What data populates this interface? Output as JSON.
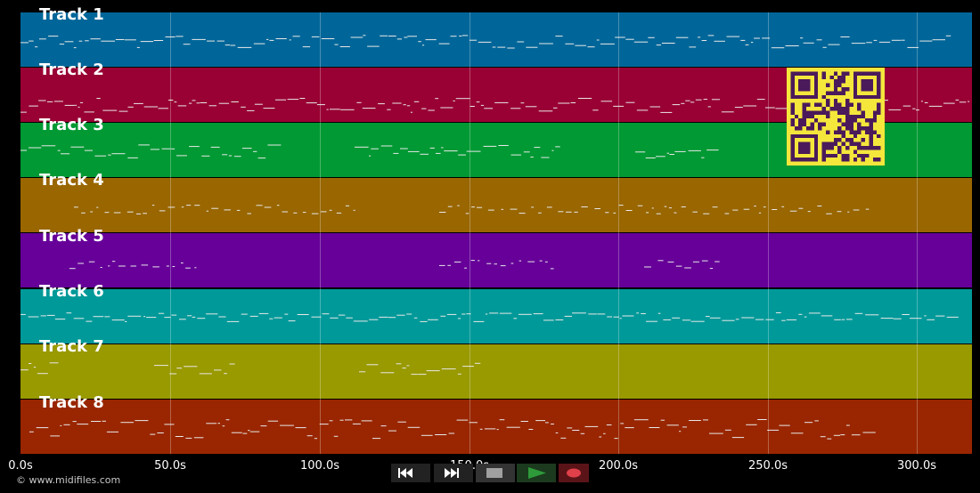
{
  "tracks": [
    {
      "name": "Track 1",
      "color": "#006699"
    },
    {
      "name": "Track 2",
      "color": "#990033"
    },
    {
      "name": "Track 3",
      "color": "#009933"
    },
    {
      "name": "Track 4",
      "color": "#996600"
    },
    {
      "name": "Track 5",
      "color": "#660099"
    },
    {
      "name": "Track 6",
      "color": "#009999"
    },
    {
      "name": "Track 7",
      "color": "#999900"
    },
    {
      "name": "Track 8",
      "color": "#992600"
    }
  ],
  "timeline": {
    "ticks": [
      "0.0s",
      "50.0s",
      "100.0s",
      "150.0s",
      "200.0s",
      "250.0s",
      "300.0s"
    ],
    "tick_values": [
      0,
      50,
      100,
      150,
      200,
      250,
      300
    ],
    "max_seconds": 318
  },
  "footer": {
    "copyright": "© www.midifiles.com"
  },
  "transport": {
    "rewind_icon": "rewind-icon",
    "fast_forward_icon": "fast-forward-icon",
    "stop_icon": "stop-icon",
    "play_icon": "play-icon",
    "record_icon": "record-icon",
    "play_color": "#2e9a3a",
    "record_color": "#e0404a"
  },
  "qr_code": {
    "colors": [
      "#f5e63c",
      "#4a1a5a"
    ]
  }
}
